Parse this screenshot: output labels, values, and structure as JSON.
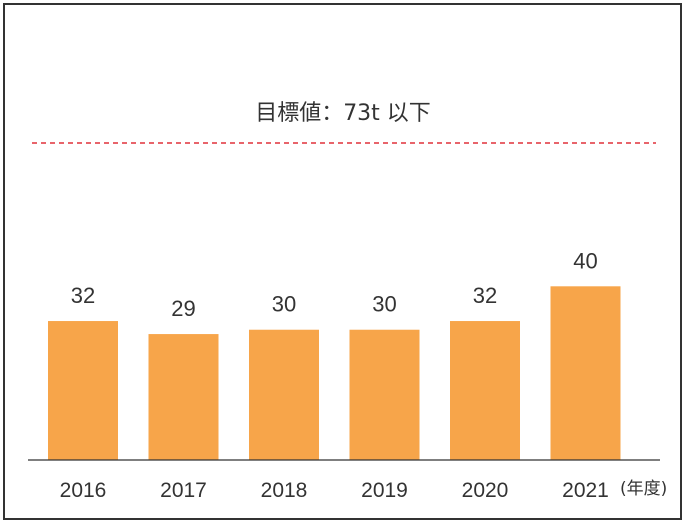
{
  "chart_data": {
    "type": "bar",
    "categories": [
      "2016",
      "2017",
      "2018",
      "2019",
      "2020",
      "2021"
    ],
    "values": [
      32,
      29,
      30,
      30,
      32,
      40
    ],
    "data_labels": [
      "32",
      "29",
      "30",
      "30",
      "32",
      "40"
    ],
    "x_unit": "(年度)",
    "target": {
      "label": "目標値：73t 以下",
      "value": 73
    },
    "bar_color": "#F7A54A",
    "target_line_color": "#E0303A",
    "ylim": [
      0,
      73
    ],
    "grid": false
  }
}
